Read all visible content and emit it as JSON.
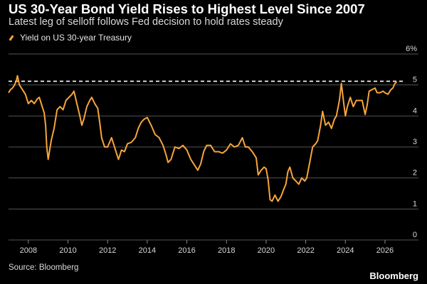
{
  "header": {
    "title": "US 30-Year Bond Yield Rises to Highest Level Since 2007",
    "subtitle": "Latest leg of selloff follows Fed decision to hold rates steady"
  },
  "footer": {
    "source": "Source: Bloomberg",
    "brand": "Bloomberg"
  },
  "colors": {
    "background": "#000000",
    "line": "#f7a53b",
    "grid": "#555555",
    "reference_line": "#ffffff"
  },
  "chart_data": {
    "type": "line",
    "title": "US 30-Year Bond Yield Rises to Highest Level Since 2007",
    "subtitle": "Latest leg of selloff follows Fed decision to hold rates steady",
    "xlabel": "",
    "ylabel": "",
    "xlim": [
      2007.0,
      2026.9
    ],
    "ylim": [
      0,
      6
    ],
    "x_ticks": [
      2008,
      2010,
      2012,
      2014,
      2016,
      2018,
      2020,
      2022,
      2024,
      2026
    ],
    "x_tick_labels": [
      "2008",
      "2010",
      "2012",
      "2014",
      "2016",
      "2018",
      "2020",
      "2022",
      "2024",
      "2026"
    ],
    "y_ticks": [
      0,
      1,
      2,
      3,
      4,
      5,
      6
    ],
    "y_tick_labels": [
      "0",
      "1",
      "2",
      "3",
      "4",
      "5",
      "6%"
    ],
    "y_axis_side": "right",
    "grid": "horizontal",
    "legend_placement": "top-left",
    "reference_line": {
      "y": 5.12,
      "style": "dashed"
    },
    "series": [
      {
        "name": "Yield on US 30-year Treasury",
        "x": [
          2007.0,
          2007.1,
          2007.2,
          2007.3,
          2007.4,
          2007.45,
          2007.55,
          2007.7,
          2007.85,
          2008.0,
          2008.15,
          2008.3,
          2008.45,
          2008.55,
          2008.7,
          2008.8,
          2008.87,
          2008.93,
          2009.0,
          2009.15,
          2009.3,
          2009.45,
          2009.6,
          2009.75,
          2009.9,
          2010.05,
          2010.2,
          2010.3,
          2010.45,
          2010.6,
          2010.7,
          2010.8,
          2010.95,
          2011.1,
          2011.2,
          2011.35,
          2011.5,
          2011.6,
          2011.7,
          2011.85,
          2012.0,
          2012.2,
          2012.4,
          2012.55,
          2012.7,
          2012.85,
          2013.0,
          2013.2,
          2013.4,
          2013.55,
          2013.7,
          2013.85,
          2014.0,
          2014.2,
          2014.4,
          2014.6,
          2014.8,
          2014.95,
          2015.05,
          2015.2,
          2015.4,
          2015.6,
          2015.8,
          2016.0,
          2016.2,
          2016.4,
          2016.55,
          2016.7,
          2016.85,
          2017.0,
          2017.2,
          2017.4,
          2017.6,
          2017.8,
          2018.0,
          2018.2,
          2018.4,
          2018.6,
          2018.8,
          2018.95,
          2019.1,
          2019.3,
          2019.5,
          2019.6,
          2019.75,
          2019.9,
          2020.0,
          2020.1,
          2020.2,
          2020.3,
          2020.45,
          2020.6,
          2020.75,
          2020.9,
          2021.0,
          2021.1,
          2021.2,
          2021.35,
          2021.5,
          2021.65,
          2021.8,
          2021.95,
          2022.05,
          2022.2,
          2022.35,
          2022.5,
          2022.6,
          2022.75,
          2022.85,
          2023.0,
          2023.15,
          2023.3,
          2023.45,
          2023.55,
          2023.7,
          2023.8,
          2023.9,
          2024.0,
          2024.1,
          2024.25,
          2024.4,
          2024.55,
          2024.7,
          2024.85,
          2025.0,
          2025.1,
          2025.2,
          2025.35,
          2025.5,
          2025.6,
          2025.75,
          2025.9,
          2026.0,
          2026.15,
          2026.3,
          2026.4,
          2026.5,
          2026.6
        ],
        "values": [
          4.75,
          4.85,
          4.9,
          5.0,
          5.15,
          5.3,
          5.0,
          4.85,
          4.7,
          4.4,
          4.5,
          4.4,
          4.55,
          4.6,
          4.3,
          4.1,
          3.7,
          3.0,
          2.6,
          3.2,
          3.6,
          4.2,
          4.3,
          4.2,
          4.5,
          4.6,
          4.7,
          4.8,
          4.4,
          4.0,
          3.7,
          3.9,
          4.3,
          4.5,
          4.6,
          4.4,
          4.25,
          3.8,
          3.3,
          3.0,
          3.0,
          3.3,
          2.9,
          2.6,
          2.9,
          2.85,
          3.1,
          3.15,
          3.3,
          3.6,
          3.8,
          3.9,
          3.95,
          3.7,
          3.4,
          3.3,
          3.05,
          2.75,
          2.5,
          2.6,
          3.0,
          2.95,
          3.05,
          2.9,
          2.6,
          2.4,
          2.25,
          2.45,
          2.85,
          3.05,
          3.05,
          2.85,
          2.85,
          2.8,
          2.9,
          3.1,
          3.0,
          3.05,
          3.3,
          3.0,
          3.0,
          2.85,
          2.65,
          2.1,
          2.25,
          2.35,
          2.3,
          1.95,
          1.3,
          1.25,
          1.45,
          1.25,
          1.4,
          1.65,
          1.8,
          2.2,
          2.35,
          2.0,
          1.9,
          1.8,
          2.0,
          1.9,
          2.0,
          2.5,
          3.0,
          3.1,
          3.2,
          3.7,
          4.15,
          3.7,
          3.8,
          3.6,
          3.9,
          4.0,
          4.5,
          5.05,
          4.5,
          4.0,
          4.3,
          4.6,
          4.3,
          4.5,
          4.5,
          4.5,
          4.05,
          4.35,
          4.8,
          4.85,
          4.9,
          4.75,
          4.75,
          4.8,
          4.75,
          4.7,
          4.85,
          4.9,
          5.05,
          5.1
        ]
      }
    ]
  }
}
